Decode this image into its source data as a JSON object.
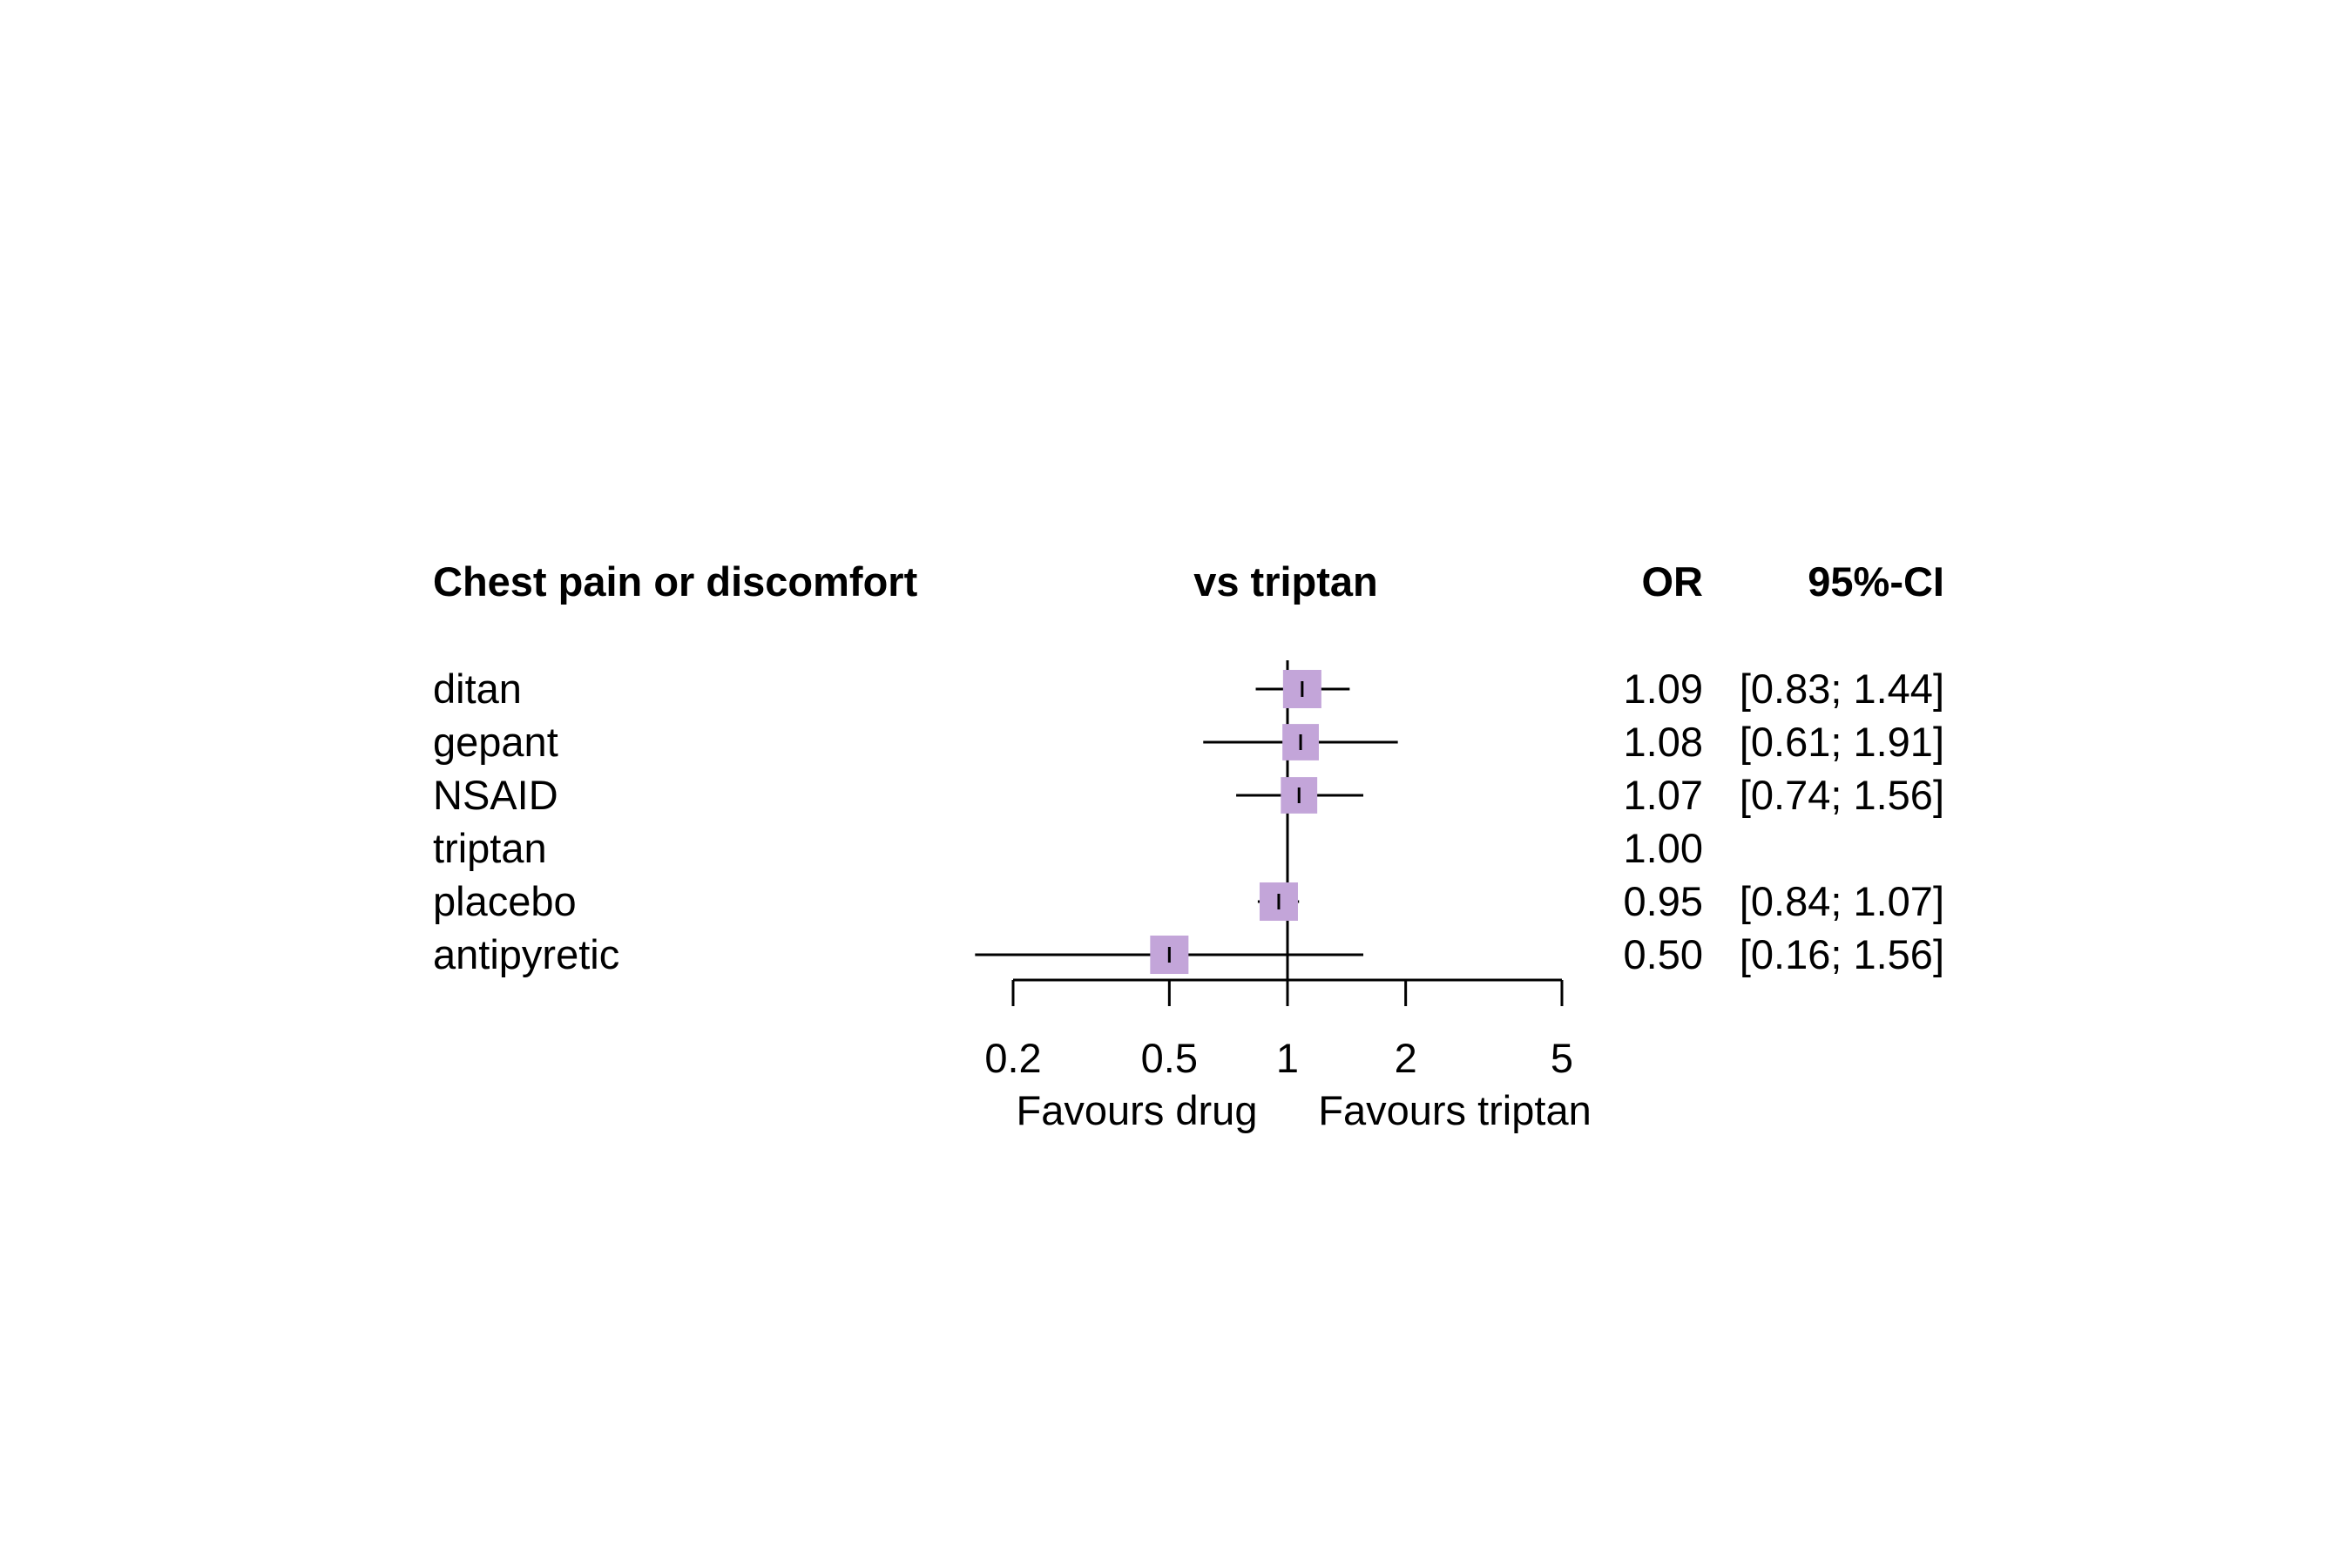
{
  "chart_data": {
    "type": "forest",
    "title": "Chest pain or discomfort",
    "comparison_label": "vs triptan",
    "columns": {
      "estimate": "OR",
      "ci": "95%-CI"
    },
    "x_scale": "log",
    "xlim": [
      0.2,
      5
    ],
    "x_ticks": [
      "0.2",
      "0.5",
      "1",
      "2",
      "5"
    ],
    "reference_value": 1,
    "favours_left": "Favours drug",
    "favours_right": "Favours triptan",
    "marker_color": "#c3a5d9",
    "rows": [
      {
        "label": "ditan",
        "or": 1.09,
        "lower": 0.83,
        "upper": 1.44,
        "or_text": "1.09",
        "ci_text": "[0.83; 1.44]",
        "weight": 1.0
      },
      {
        "label": "gepant",
        "or": 1.08,
        "lower": 0.61,
        "upper": 1.91,
        "or_text": "1.08",
        "ci_text": "[0.61; 1.91]",
        "weight": 0.95
      },
      {
        "label": "NSAID",
        "or": 1.07,
        "lower": 0.74,
        "upper": 1.56,
        "or_text": "1.07",
        "ci_text": "[0.74; 1.56]",
        "weight": 0.95
      },
      {
        "label": "triptan",
        "or": 1.0,
        "lower": null,
        "upper": null,
        "or_text": "1.00",
        "ci_text": "",
        "weight": 0
      },
      {
        "label": "placebo",
        "or": 0.95,
        "lower": 0.84,
        "upper": 1.07,
        "or_text": "0.95",
        "ci_text": "[0.84; 1.07]",
        "weight": 1.0
      },
      {
        "label": "antipyretic",
        "or": 0.5,
        "lower": 0.16,
        "upper": 1.56,
        "or_text": "0.50",
        "ci_text": "[0.16; 1.56]",
        "weight": 1.0
      }
    ]
  }
}
